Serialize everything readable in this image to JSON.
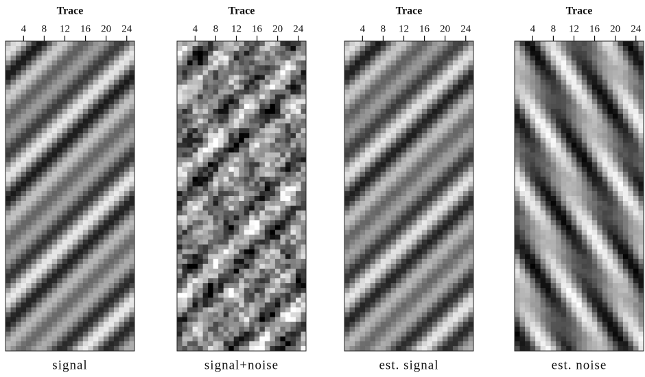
{
  "panels": [
    {
      "axis_label": "Trace",
      "ticks": [
        4,
        8,
        12,
        16,
        20,
        24
      ],
      "caption": "signal"
    },
    {
      "axis_label": "Trace",
      "ticks": [
        4,
        8,
        12,
        16,
        20,
        24
      ],
      "caption": "signal+noise"
    },
    {
      "axis_label": "Trace",
      "ticks": [
        4,
        8,
        12,
        16,
        20,
        24
      ],
      "caption": "est. signal"
    },
    {
      "axis_label": "Trace",
      "ticks": [
        4,
        8,
        12,
        16,
        20,
        24
      ],
      "caption": "est. noise"
    }
  ]
}
